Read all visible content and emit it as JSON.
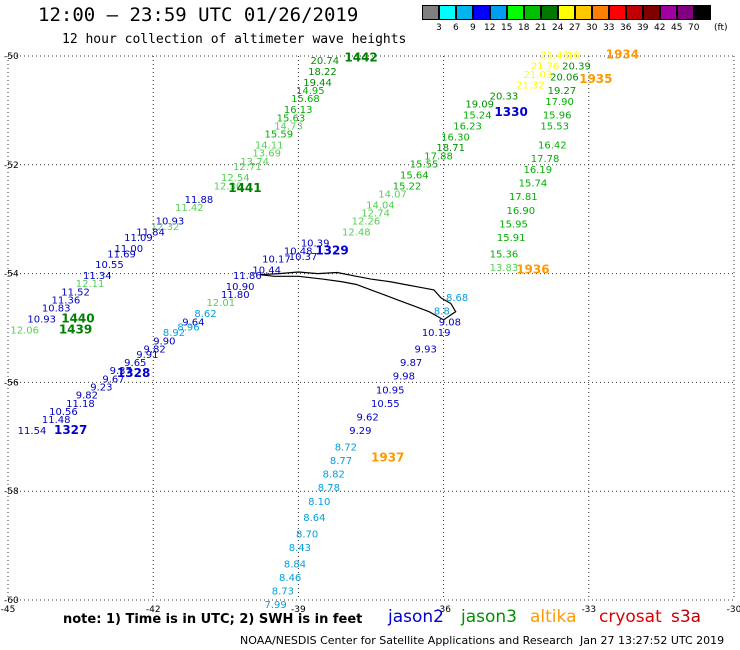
{
  "header": {
    "title": "12:00 – 23:59 UTC 01/26/2019",
    "subtitle": "12 hour collection of altimeter wave heights"
  },
  "legend": {
    "unit": "(ft)",
    "levels": [
      "3",
      "6",
      "9",
      "12",
      "15",
      "18",
      "21",
      "24",
      "27",
      "30",
      "33",
      "36",
      "39",
      "42",
      "45",
      "70"
    ],
    "colors": [
      "#808080",
      "#00ffff",
      "#00b4f0",
      "#0000ff",
      "#009ef0",
      "#00ff00",
      "#00c000",
      "#007800",
      "#ffff00",
      "#ffc800",
      "#ff8000",
      "#ff0000",
      "#c00000",
      "#800000",
      "#a000a0",
      "#800080",
      "#000000"
    ]
  },
  "footer": {
    "note": "note: 1) Time is in UTC; 2) SWH is in feet",
    "satellites": [
      {
        "name": "jason2",
        "color": "#0000d0"
      },
      {
        "name": "jason3",
        "color": "#009000"
      },
      {
        "name": "altika",
        "color": "#ff9900"
      },
      {
        "name": "cryosat",
        "color": "#e00000"
      },
      {
        "name": "s3a",
        "color": "#c00000"
      }
    ],
    "credit": "NOAA/NESDIS Center for Satellite Applications and Research",
    "timestamp": "Jan 27 13:27:52 UTC 2019"
  },
  "chart_data": {
    "type": "scatter",
    "xlim": [
      -45,
      -30
    ],
    "ylim": [
      -60,
      -50
    ],
    "x_ticks": [
      -45,
      -42,
      -39,
      -36,
      -33,
      -30
    ],
    "y_ticks": [
      -50,
      -52,
      -54,
      -56,
      -58,
      -60
    ],
    "grid": true,
    "tracks": [
      {
        "id": "1442",
        "label_color": "#008000",
        "label_lon": -38.05,
        "label_lat": -50.1,
        "points": [
          {
            "lon": -38.75,
            "lat": -50.15,
            "v": "20.74",
            "c": "#009000"
          },
          {
            "lon": -38.8,
            "lat": -50.35,
            "v": "18.22",
            "c": "#009000"
          },
          {
            "lon": -38.9,
            "lat": -50.55,
            "v": "19.44",
            "c": "#009000"
          },
          {
            "lon": -39.05,
            "lat": -50.7,
            "v": "14.95",
            "c": "#00b000"
          },
          {
            "lon": -39.15,
            "lat": -50.85,
            "v": "15.68",
            "c": "#00b000"
          },
          {
            "lon": -39.3,
            "lat": -51.05,
            "v": "16.13",
            "c": "#00b000"
          },
          {
            "lon": -39.45,
            "lat": -51.2,
            "v": "15.63",
            "c": "#00b000"
          },
          {
            "lon": -39.5,
            "lat": -51.35,
            "v": "14.73",
            "c": "#55d055"
          },
          {
            "lon": -39.7,
            "lat": -51.5,
            "v": "15.59",
            "c": "#00b000"
          },
          {
            "lon": -39.9,
            "lat": -51.7,
            "v": "14.11",
            "c": "#55d055"
          },
          {
            "lon": -39.95,
            "lat": -51.85,
            "v": "13.69",
            "c": "#55d055"
          },
          {
            "lon": -40.2,
            "lat": -52.0,
            "v": "13.74",
            "c": "#55d055"
          },
          {
            "lon": -40.35,
            "lat": -52.1,
            "v": "12.71",
            "c": "#55d055"
          },
          {
            "lon": -40.6,
            "lat": -52.3,
            "v": "12.54",
            "c": "#55d055"
          },
          {
            "lon": -40.75,
            "lat": -52.45,
            "v": "12.30",
            "c": "#55d055"
          }
        ]
      },
      {
        "id": "1441",
        "label_color": "#008000",
        "label_lon": -40.45,
        "label_lat": -52.5,
        "points": [
          {
            "lon": -41.35,
            "lat": -52.7,
            "v": "11.88",
            "c": "#0000c0"
          },
          {
            "lon": -41.55,
            "lat": -52.85,
            "v": "11.42",
            "c": "#55d055"
          },
          {
            "lon": -41.95,
            "lat": -53.1,
            "v": "10.93",
            "c": "#0000c0"
          },
          {
            "lon": -42.05,
            "lat": -53.2,
            "v": "12.32",
            "c": "#55d055"
          },
          {
            "lon": -42.35,
            "lat": -53.3,
            "v": "11.84",
            "c": "#0000c0"
          },
          {
            "lon": -42.6,
            "lat": -53.4,
            "v": "11.09",
            "c": "#0000c0"
          },
          {
            "lon": -42.8,
            "lat": -53.6,
            "v": "11.00",
            "c": "#0000c0"
          },
          {
            "lon": -42.95,
            "lat": -53.7,
            "v": "11.69",
            "c": "#0000c0"
          },
          {
            "lon": -43.2,
            "lat": -53.9,
            "v": "10.55",
            "c": "#0000c0"
          },
          {
            "lon": -43.45,
            "lat": -54.1,
            "v": "11.34",
            "c": "#0000c0"
          },
          {
            "lon": -43.6,
            "lat": -54.25,
            "v": "12.11",
            "c": "#55d055"
          },
          {
            "lon": -43.9,
            "lat": -54.4,
            "v": "11.52",
            "c": "#0000c0"
          },
          {
            "lon": -44.1,
            "lat": -54.55,
            "v": "11.36",
            "c": "#0000c0"
          },
          {
            "lon": -44.3,
            "lat": -54.7,
            "v": "10.83",
            "c": "#0000c0"
          },
          {
            "lon": -44.6,
            "lat": -54.9,
            "v": "10.93",
            "c": "#0000c0"
          },
          {
            "lon": -44.95,
            "lat": -55.1,
            "v": "12.06",
            "c": "#55d055"
          }
        ]
      },
      {
        "id": "1440",
        "label_color": "#008000",
        "label_lon": -43.9,
        "label_lat": -54.9,
        "points": []
      },
      {
        "id": "1439",
        "label_color": "#008000",
        "label_lon": -43.95,
        "label_lat": -55.1,
        "points": []
      },
      {
        "id": "1934",
        "label_color": "#ff9900",
        "label_lon": -32.65,
        "label_lat": -50.05,
        "points": [
          {
            "lon": -34.0,
            "lat": -50.05,
            "v": "21.43",
            "c": "#ffff00"
          },
          {
            "lon": -33.45,
            "lat": -50.05,
            "v": "16",
            "c": "#ffff00"
          },
          {
            "lon": -34.2,
            "lat": -50.25,
            "v": "21.76",
            "c": "#ffff00"
          },
          {
            "lon": -33.55,
            "lat": -50.25,
            "v": "20.39",
            "c": "#009000"
          },
          {
            "lon": -34.35,
            "lat": -50.4,
            "v": "21.03",
            "c": "#ffff00"
          },
          {
            "lon": -33.8,
            "lat": -50.45,
            "v": "20.06",
            "c": "#009000"
          },
          {
            "lon": -34.5,
            "lat": -50.6,
            "v": "21.32",
            "c": "#ffff00"
          },
          {
            "lon": -33.85,
            "lat": -50.7,
            "v": "19.27",
            "c": "#009000"
          },
          {
            "lon": -33.9,
            "lat": -50.9,
            "v": "17.90",
            "c": "#00b000"
          },
          {
            "lon": -33.95,
            "lat": -51.15,
            "v": "15.96",
            "c": "#00b000"
          },
          {
            "lon": -34.0,
            "lat": -51.35,
            "v": "15.53",
            "c": "#00b000"
          },
          {
            "lon": -34.05,
            "lat": -51.7,
            "v": "16.42",
            "c": "#00b000"
          },
          {
            "lon": -34.2,
            "lat": -51.95,
            "v": "17.78",
            "c": "#00b000"
          },
          {
            "lon": -34.35,
            "lat": -52.15,
            "v": "16.19",
            "c": "#00b000"
          },
          {
            "lon": -34.45,
            "lat": -52.4,
            "v": "15.74",
            "c": "#00b000"
          },
          {
            "lon": -34.65,
            "lat": -52.65,
            "v": "17.81",
            "c": "#00b000"
          },
          {
            "lon": -34.7,
            "lat": -52.9,
            "v": "16.90",
            "c": "#00b000"
          },
          {
            "lon": -34.85,
            "lat": -53.15,
            "v": "15.95",
            "c": "#00b000"
          },
          {
            "lon": -34.9,
            "lat": -53.4,
            "v": "15.91",
            "c": "#00b000"
          },
          {
            "lon": -35.05,
            "lat": -53.7,
            "v": "15.36",
            "c": "#00b000"
          },
          {
            "lon": -35.05,
            "lat": -53.95,
            "v": "13.83",
            "c": "#55d055"
          }
        ]
      },
      {
        "id": "1935",
        "label_color": "#ff9900",
        "label_lon": -33.2,
        "label_lat": -50.5,
        "points": []
      },
      {
        "id": "1936",
        "label_color": "#ff9900",
        "label_lon": -34.5,
        "label_lat": -54.0,
        "points": []
      },
      {
        "id": "1330",
        "label_color": "#0000d0",
        "label_lon": -34.95,
        "label_lat": -51.1,
        "points": [
          {
            "lon": -35.05,
            "lat": -50.8,
            "v": "20.33",
            "c": "#009000"
          },
          {
            "lon": -35.55,
            "lat": -50.95,
            "v": "19.09",
            "c": "#009000"
          },
          {
            "lon": -35.6,
            "lat": -51.15,
            "v": "15.24",
            "c": "#00b000"
          },
          {
            "lon": -35.8,
            "lat": -51.35,
            "v": "16.23",
            "c": "#00b000"
          },
          {
            "lon": -36.05,
            "lat": -51.55,
            "v": "16.30",
            "c": "#00b000"
          },
          {
            "lon": -36.15,
            "lat": -51.75,
            "v": "18.71",
            "c": "#009000"
          },
          {
            "lon": -36.4,
            "lat": -51.9,
            "v": "17.88",
            "c": "#00b000"
          },
          {
            "lon": -36.7,
            "lat": -52.05,
            "v": "15.55",
            "c": "#00b000"
          },
          {
            "lon": -36.9,
            "lat": -52.25,
            "v": "15.64",
            "c": "#00b000"
          },
          {
            "lon": -37.05,
            "lat": -52.45,
            "v": "15.22",
            "c": "#00b000"
          },
          {
            "lon": -37.35,
            "lat": -52.6,
            "v": "14.07",
            "c": "#55d055"
          },
          {
            "lon": -37.6,
            "lat": -52.8,
            "v": "14.04",
            "c": "#55d055"
          },
          {
            "lon": -37.7,
            "lat": -52.95,
            "v": "12.74",
            "c": "#55d055"
          },
          {
            "lon": -37.9,
            "lat": -53.1,
            "v": "12.26",
            "c": "#55d055"
          },
          {
            "lon": -38.1,
            "lat": -53.3,
            "v": "12.48",
            "c": "#55d055"
          }
        ]
      },
      {
        "id": "1329",
        "label_color": "#0000d0",
        "label_lon": -38.65,
        "label_lat": -53.65,
        "points": [
          {
            "lon": -38.95,
            "lat": -53.5,
            "v": "10.39",
            "c": "#0000c0"
          },
          {
            "lon": -39.3,
            "lat": -53.65,
            "v": "10.48",
            "c": "#0000c0"
          },
          {
            "lon": -39.2,
            "lat": -53.75,
            "v": "10.37",
            "c": "#0000c0"
          },
          {
            "lon": -39.75,
            "lat": -53.8,
            "v": "10.17",
            "c": "#0000c0"
          },
          {
            "lon": -39.95,
            "lat": -54.0,
            "v": "10.44",
            "c": "#0000c0"
          },
          {
            "lon": -40.35,
            "lat": -54.1,
            "v": "11.86",
            "c": "#0000c0"
          },
          {
            "lon": -40.5,
            "lat": -54.3,
            "v": "10.90",
            "c": "#0000c0"
          },
          {
            "lon": -40.6,
            "lat": -54.45,
            "v": "11.80",
            "c": "#0000c0"
          },
          {
            "lon": -40.9,
            "lat": -54.6,
            "v": "12.01",
            "c": "#55d055"
          },
          {
            "lon": -41.15,
            "lat": -54.8,
            "v": "8.62",
            "c": "#00a0e0"
          },
          {
            "lon": -41.4,
            "lat": -54.95,
            "v": "9.64",
            "c": "#0000c0"
          },
          {
            "lon": -41.5,
            "lat": -55.05,
            "v": "8.96",
            "c": "#00a0e0"
          },
          {
            "lon": -41.8,
            "lat": -55.15,
            "v": "8.92",
            "c": "#00a0e0"
          },
          {
            "lon": -42.0,
            "lat": -55.3,
            "v": "9.90",
            "c": "#0000c0"
          },
          {
            "lon": -42.2,
            "lat": -55.45,
            "v": "9.82",
            "c": "#0000c0"
          },
          {
            "lon": -42.35,
            "lat": -55.55,
            "v": "9.91",
            "c": "#0000c0"
          }
        ]
      },
      {
        "id": "1328",
        "label_color": "#0000d0",
        "label_lon": -42.75,
        "label_lat": -55.9,
        "points": [
          {
            "lon": -42.6,
            "lat": -55.7,
            "v": "9.65",
            "c": "#0000c0"
          },
          {
            "lon": -42.9,
            "lat": -55.85,
            "v": "9.37",
            "c": "#0000c0"
          },
          {
            "lon": -43.05,
            "lat": -56.0,
            "v": "9.67",
            "c": "#0000c0"
          },
          {
            "lon": -43.3,
            "lat": -56.15,
            "v": "9.23",
            "c": "#0000c0"
          },
          {
            "lon": -43.6,
            "lat": -56.3,
            "v": "9.82",
            "c": "#0000c0"
          },
          {
            "lon": -43.8,
            "lat": -56.45,
            "v": "11.18",
            "c": "#0000c0"
          },
          {
            "lon": -44.15,
            "lat": -56.6,
            "v": "10.56",
            "c": "#0000c0"
          },
          {
            "lon": -44.3,
            "lat": -56.75,
            "v": "11.48",
            "c": "#0000c0"
          },
          {
            "lon": -44.8,
            "lat": -56.95,
            "v": "11.54",
            "c": "#0000c0"
          }
        ]
      },
      {
        "id": "1327",
        "label_color": "#0000d0",
        "label_lon": -44.05,
        "label_lat": -56.95,
        "points": []
      },
      {
        "id": "1937",
        "label_color": "#ff9900",
        "label_lon": -37.5,
        "label_lat": -57.45,
        "points": [
          {
            "lon": -35.95,
            "lat": -54.5,
            "v": "8.68",
            "c": "#00a0e0"
          },
          {
            "lon": -36.2,
            "lat": -54.75,
            "v": "8.8",
            "c": "#00a0e0"
          },
          {
            "lon": -36.1,
            "lat": -54.95,
            "v": "9.08",
            "c": "#0000c0"
          },
          {
            "lon": -36.45,
            "lat": -55.15,
            "v": "10.19",
            "c": "#0000c0"
          },
          {
            "lon": -36.6,
            "lat": -55.45,
            "v": "9.93",
            "c": "#0000c0"
          },
          {
            "lon": -36.9,
            "lat": -55.7,
            "v": "9.87",
            "c": "#0000c0"
          },
          {
            "lon": -37.05,
            "lat": -55.95,
            "v": "9.98",
            "c": "#0000c0"
          },
          {
            "lon": -37.4,
            "lat": -56.2,
            "v": "10.95",
            "c": "#0000c0"
          },
          {
            "lon": -37.5,
            "lat": -56.45,
            "v": "10.55",
            "c": "#0000c0"
          },
          {
            "lon": -37.8,
            "lat": -56.7,
            "v": "9.62",
            "c": "#0000c0"
          },
          {
            "lon": -37.95,
            "lat": -56.95,
            "v": "9.29",
            "c": "#0000c0"
          },
          {
            "lon": -38.25,
            "lat": -57.25,
            "v": "8.72",
            "c": "#00a0e0"
          },
          {
            "lon": -38.35,
            "lat": -57.5,
            "v": "8.77",
            "c": "#00a0e0"
          },
          {
            "lon": -38.5,
            "lat": -57.75,
            "v": "8.82",
            "c": "#00a0e0"
          },
          {
            "lon": -38.6,
            "lat": -58.0,
            "v": "8.78",
            "c": "#00a0e0"
          },
          {
            "lon": -38.8,
            "lat": -58.25,
            "v": "8.10",
            "c": "#00a0e0"
          },
          {
            "lon": -38.9,
            "lat": -58.55,
            "v": "8.64",
            "c": "#00a0e0"
          },
          {
            "lon": -39.05,
            "lat": -58.85,
            "v": "8.70",
            "c": "#00a0e0"
          },
          {
            "lon": -39.2,
            "lat": -59.1,
            "v": "8.43",
            "c": "#00a0e0"
          },
          {
            "lon": -39.3,
            "lat": -59.4,
            "v": "8.84",
            "c": "#00a0e0"
          },
          {
            "lon": -39.4,
            "lat": -59.65,
            "v": "8.46",
            "c": "#00a0e0"
          },
          {
            "lon": -39.55,
            "lat": -59.9,
            "v": "8.73",
            "c": "#00a0e0"
          },
          {
            "lon": -39.7,
            "lat": -60.15,
            "v": "7.99",
            "c": "#00a0e0"
          }
        ]
      }
    ],
    "coastline": [
      [
        -39.8,
        -54.02
      ],
      [
        -39.4,
        -54.0
      ],
      [
        -39.0,
        -53.97
      ],
      [
        -38.6,
        -54.0
      ],
      [
        -38.2,
        -53.98
      ],
      [
        -37.8,
        -54.05
      ],
      [
        -37.5,
        -54.1
      ],
      [
        -37.1,
        -54.15
      ],
      [
        -36.8,
        -54.2
      ],
      [
        -36.5,
        -54.25
      ],
      [
        -36.2,
        -54.3
      ],
      [
        -36.05,
        -54.45
      ],
      [
        -35.85,
        -54.55
      ],
      [
        -35.75,
        -54.7
      ],
      [
        -36.0,
        -54.85
      ],
      [
        -36.3,
        -54.7
      ],
      [
        -36.6,
        -54.6
      ],
      [
        -36.9,
        -54.5
      ],
      [
        -37.2,
        -54.4
      ],
      [
        -37.5,
        -54.3
      ],
      [
        -37.8,
        -54.2
      ],
      [
        -38.1,
        -54.15
      ],
      [
        -38.5,
        -54.1
      ],
      [
        -39.0,
        -54.05
      ],
      [
        -39.5,
        -54.05
      ],
      [
        -39.8,
        -54.02
      ]
    ]
  }
}
